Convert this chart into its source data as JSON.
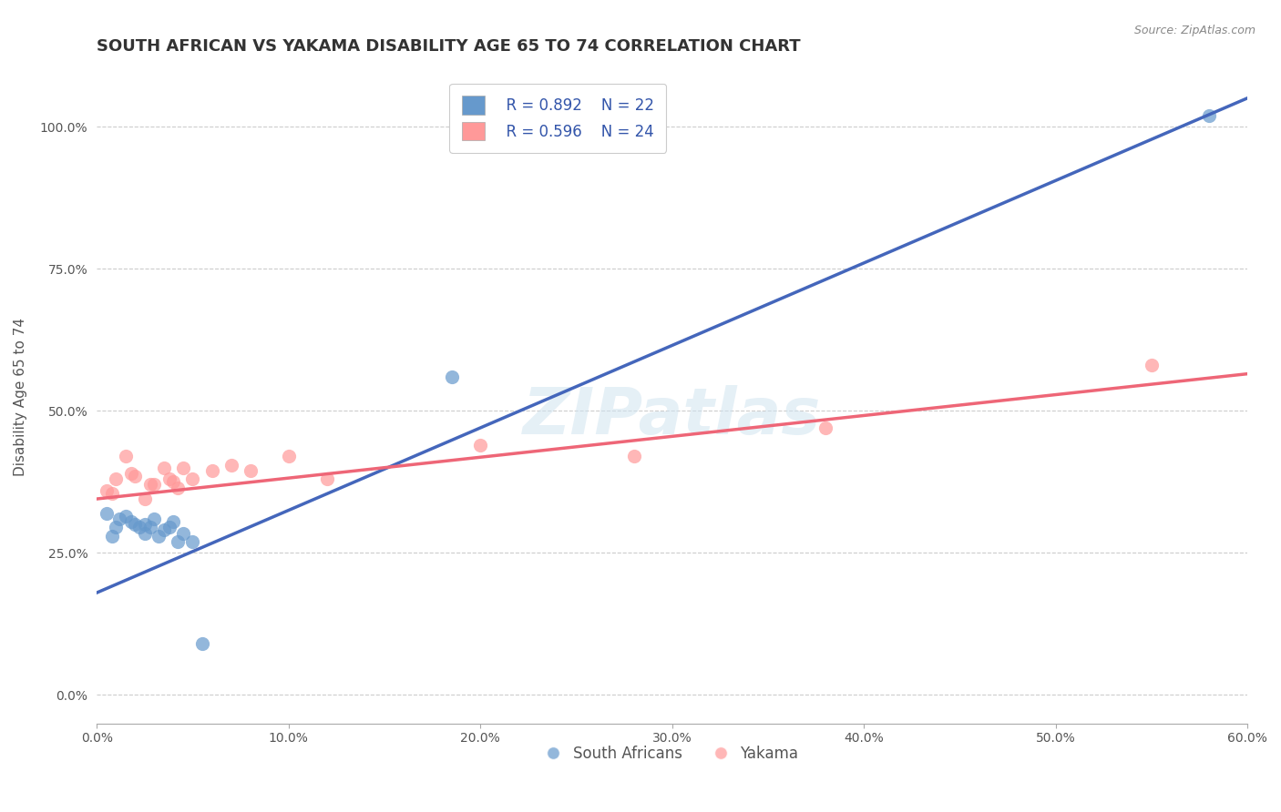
{
  "title": "SOUTH AFRICAN VS YAKAMA DISABILITY AGE 65 TO 74 CORRELATION CHART",
  "source": "Source: ZipAtlas.com",
  "xlabel": "",
  "ylabel": "Disability Age 65 to 74",
  "xlim": [
    0.0,
    0.6
  ],
  "ylim": [
    -0.05,
    1.1
  ],
  "xticks": [
    0.0,
    0.1,
    0.2,
    0.3,
    0.4,
    0.5,
    0.6
  ],
  "xticklabels": [
    "0.0%",
    "10.0%",
    "20.0%",
    "30.0%",
    "40.0%",
    "50.0%",
    "60.0%"
  ],
  "yticks": [
    0.0,
    0.25,
    0.5,
    0.75,
    1.0
  ],
  "yticklabels": [
    "0.0%",
    "25.0%",
    "50.0%",
    "75.0%",
    "100.0%"
  ],
  "grid_color": "#cccccc",
  "background_color": "#ffffff",
  "watermark": "ZIPatlas",
  "legend_r1": "R = 0.892",
  "legend_n1": "N = 22",
  "legend_r2": "R = 0.596",
  "legend_n2": "N = 24",
  "legend_label1": "South Africans",
  "legend_label2": "Yakama",
  "blue_color": "#6699cc",
  "pink_color": "#ff9999",
  "blue_line_color": "#4466bb",
  "pink_line_color": "#ee6677",
  "south_african_x": [
    0.005,
    0.008,
    0.01,
    0.012,
    0.015,
    0.018,
    0.02,
    0.022,
    0.025,
    0.025,
    0.028,
    0.03,
    0.032,
    0.035,
    0.038,
    0.04,
    0.042,
    0.045,
    0.05,
    0.055,
    0.185,
    0.58
  ],
  "south_african_y": [
    0.32,
    0.28,
    0.295,
    0.31,
    0.315,
    0.305,
    0.3,
    0.295,
    0.285,
    0.3,
    0.295,
    0.31,
    0.28,
    0.29,
    0.295,
    0.305,
    0.27,
    0.285,
    0.27,
    0.09,
    0.56,
    1.02
  ],
  "yakama_x": [
    0.005,
    0.008,
    0.01,
    0.015,
    0.018,
    0.02,
    0.025,
    0.028,
    0.03,
    0.035,
    0.038,
    0.04,
    0.042,
    0.045,
    0.05,
    0.06,
    0.07,
    0.08,
    0.1,
    0.12,
    0.2,
    0.28,
    0.38,
    0.55
  ],
  "yakama_y": [
    0.36,
    0.355,
    0.38,
    0.42,
    0.39,
    0.385,
    0.345,
    0.37,
    0.37,
    0.4,
    0.38,
    0.375,
    0.365,
    0.4,
    0.38,
    0.395,
    0.405,
    0.395,
    0.42,
    0.38,
    0.44,
    0.42,
    0.47,
    0.58
  ],
  "blue_line_x": [
    0.0,
    0.6
  ],
  "blue_line_y": [
    0.18,
    1.05
  ],
  "pink_line_x": [
    0.0,
    0.6
  ],
  "pink_line_y": [
    0.345,
    0.565
  ],
  "dot_size": 120,
  "title_fontsize": 13,
  "axis_fontsize": 11,
  "tick_fontsize": 10,
  "legend_fontsize": 12
}
